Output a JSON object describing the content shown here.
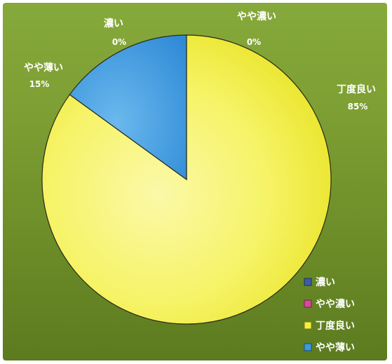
{
  "chart_data": {
    "type": "pie",
    "title": "",
    "slices": [
      {
        "label": "濃い",
        "value": 0,
        "value_label": "0%",
        "color": "#3b5ea8"
      },
      {
        "label": "やや濃い",
        "value": 0,
        "value_label": "0%",
        "color": "#d64a9a"
      },
      {
        "label": "丁度良い",
        "value": 85,
        "value_label": "85%",
        "color": "#f3f040"
      },
      {
        "label": "やや薄い",
        "value": 15,
        "value_label": "15%",
        "color": "#3a9be0"
      }
    ],
    "legend": {
      "placement": "bottom-right",
      "entries": [
        "濃い",
        "やや濃い",
        "丁度良い",
        "やや薄い"
      ]
    },
    "start_angle": "12-o-clock",
    "direction": "clockwise"
  }
}
